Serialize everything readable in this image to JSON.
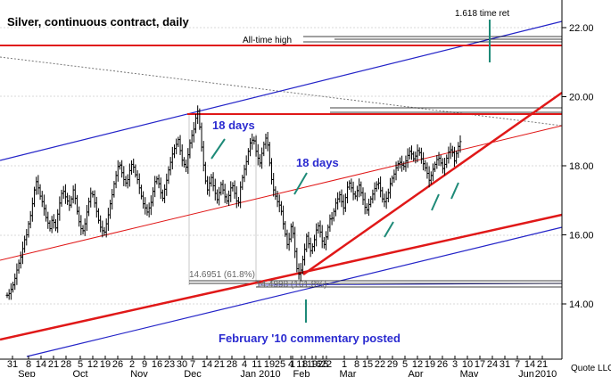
{
  "chart_data": {
    "type": "candlestick",
    "title": "Silver, continuous contract, daily",
    "credit": "Quote LLC",
    "y_axis": {
      "ticks": [
        "14.00",
        "16.00",
        "18.00",
        "20.00",
        "22.00"
      ],
      "tick_values": [
        14,
        16,
        18,
        20,
        22
      ],
      "ylim": [
        12.3,
        22.8
      ],
      "side": "right"
    },
    "x_axis": {
      "day_labels": [
        "31",
        "8",
        "14",
        "21",
        "28",
        "5",
        "12",
        "19",
        "26",
        "2",
        "9",
        "16",
        "23",
        "30",
        "7",
        "14",
        "21",
        "28",
        "4",
        "11",
        "19",
        "25",
        "4",
        "11",
        "19",
        "25",
        "1",
        "8",
        "16",
        "22",
        "1",
        "8",
        "15",
        "22",
        "29",
        "5",
        "12",
        "19",
        "26",
        "3",
        "10",
        "17",
        "24",
        "31",
        "7",
        "14",
        "21"
      ],
      "month_labels": [
        "Sep",
        "Oct",
        "Nov",
        "Dec",
        "Jan 2010",
        "Feb",
        "Mar",
        "Apr",
        "May",
        "Jun",
        "2010"
      ]
    },
    "annotations": {
      "all_time_high": "All-time high",
      "time_ret": "1.618 time ret",
      "days_left": "18 days",
      "days_right": "18 days",
      "fib_618": "14.6951 (61.8%)",
      "fib_1618": "14.4998 (161.8%)",
      "commentary": "February '10 commentary posted"
    },
    "prices": [
      14.25,
      14.3,
      14.42,
      14.55,
      14.74,
      14.98,
      15.18,
      15.36,
      15.6,
      15.86,
      16.0,
      16.32,
      16.56,
      16.9,
      17.3,
      17.54,
      17.36,
      17.12,
      16.96,
      16.76,
      16.5,
      16.34,
      16.18,
      16.42,
      16.36,
      16.2,
      16.6,
      16.92,
      17.2,
      17.26,
      17.1,
      16.98,
      16.86,
      17.04,
      17.3,
      17.06,
      16.68,
      16.38,
      16.18,
      16.12,
      16.32,
      16.66,
      16.96,
      17.2,
      17.16,
      16.92,
      16.68,
      16.42,
      16.22,
      16.12,
      16.08,
      16.32,
      16.58,
      16.9,
      17.16,
      17.48,
      17.72,
      17.98,
      18.02,
      17.8,
      17.6,
      17.5,
      17.6,
      17.86,
      18.04,
      17.96,
      17.74,
      17.6,
      17.36,
      17.12,
      16.9,
      16.78,
      16.66,
      16.78,
      16.94,
      17.26,
      17.54,
      17.62,
      17.48,
      17.22,
      17.06,
      17.32,
      17.58,
      17.88,
      18.1,
      18.34,
      18.5,
      18.62,
      18.76,
      18.44,
      18.16,
      18.04,
      17.96,
      18.32,
      18.66,
      18.88,
      19.06,
      19.38,
      19.58,
      19.12,
      18.54,
      18.02,
      17.56,
      17.3,
      17.5,
      17.66,
      17.42,
      17.2,
      17.02,
      17.22,
      17.46,
      17.3,
      17.1,
      16.98,
      17.14,
      17.36,
      17.42,
      17.2,
      16.98,
      16.94,
      17.38,
      17.66,
      17.9,
      18.12,
      18.42,
      18.66,
      18.74,
      18.72,
      18.42,
      18.22,
      18.08,
      18.36,
      18.62,
      18.8,
      18.6,
      18.08,
      17.6,
      17.3,
      17.12,
      16.96,
      16.86,
      16.68,
      16.32,
      16.02,
      15.72,
      15.88,
      16.24,
      16.04,
      15.52,
      15.02,
      14.86,
      14.98,
      15.28,
      15.58,
      15.96,
      15.74,
      15.54,
      15.66,
      15.86,
      16.14,
      16.26,
      16.08,
      15.82,
      15.72,
      15.94,
      16.22,
      16.46,
      16.48,
      16.68,
      16.92,
      17.04,
      17.16,
      16.96,
      16.78,
      17.08,
      17.38,
      17.5,
      17.36,
      17.18,
      17.12,
      17.28,
      17.44,
      17.22,
      17.02,
      16.8,
      16.72,
      16.88,
      17.04,
      17.18,
      17.34,
      17.46,
      17.5,
      17.28,
      17.04,
      16.96,
      17.06,
      17.22,
      17.48,
      17.64,
      17.76,
      17.94,
      18.06,
      18.1,
      18.02,
      17.98,
      18.14,
      18.3,
      18.42,
      18.34,
      18.2,
      18.28,
      18.44,
      18.38,
      18.2,
      18.06,
      17.94,
      17.78,
      17.58,
      17.72,
      17.9,
      18.04,
      18.18,
      18.22,
      18.08,
      17.92,
      18.04,
      18.22,
      18.4,
      18.46,
      18.38,
      18.14,
      18.36,
      18.56,
      18.7
    ]
  }
}
